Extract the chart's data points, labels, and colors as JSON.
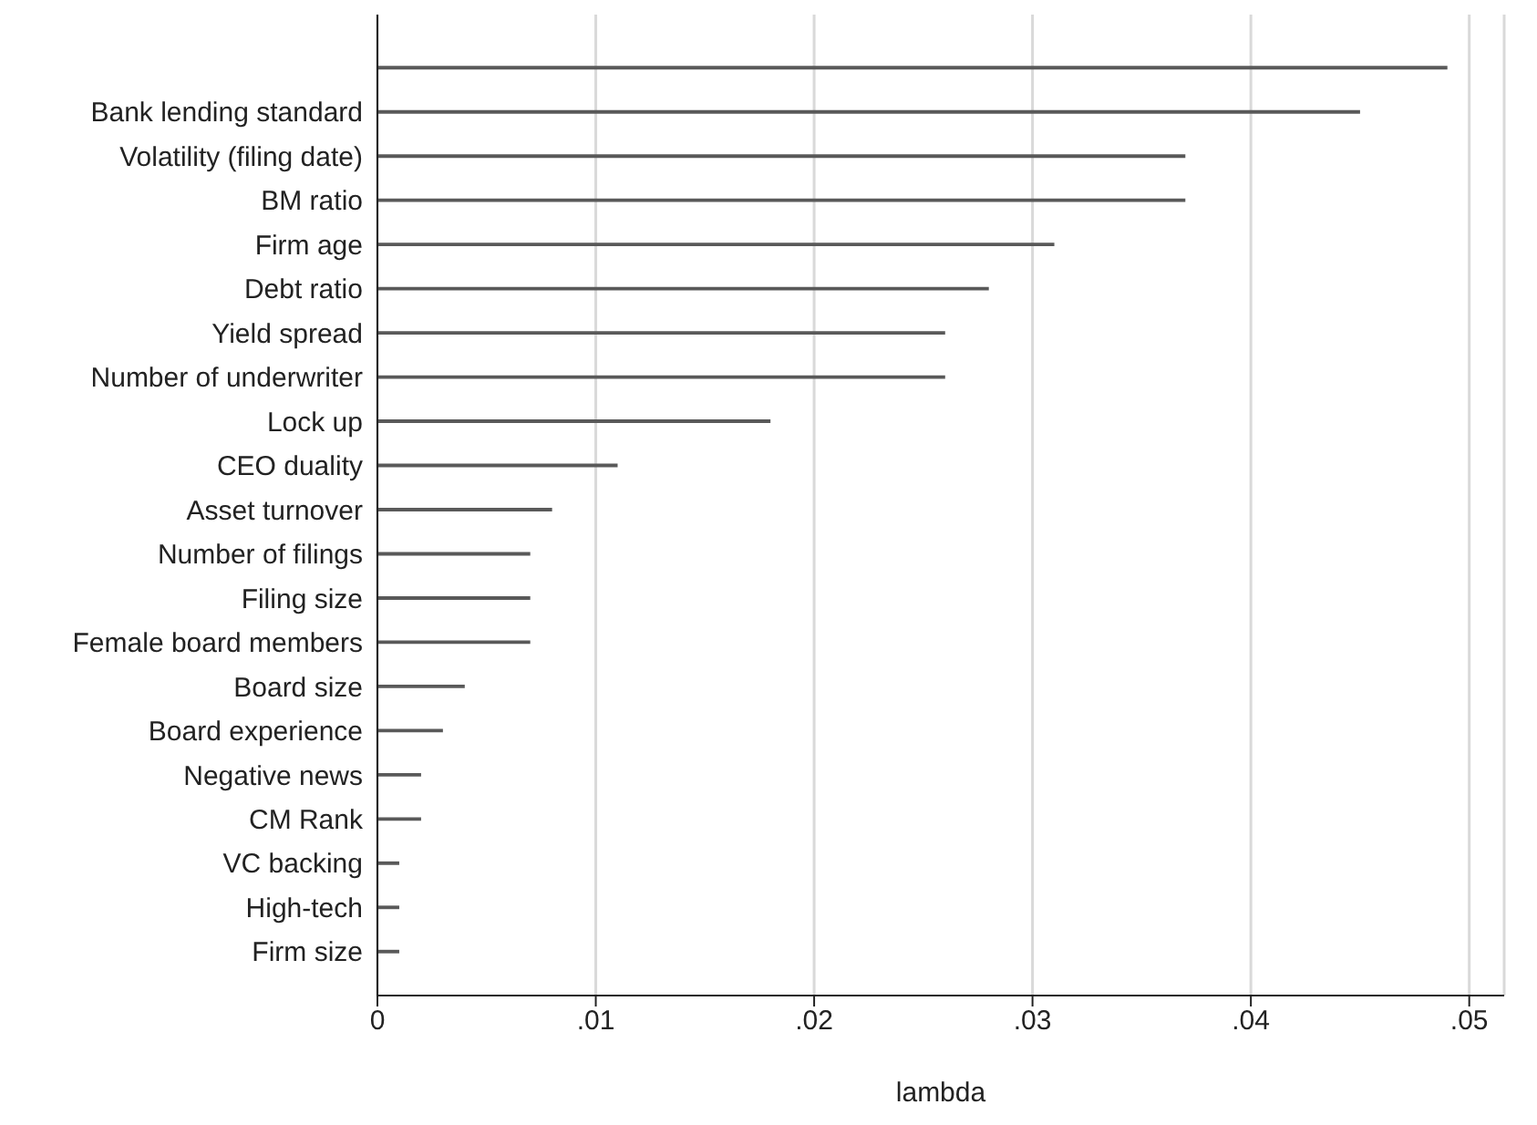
{
  "chart_data": {
    "type": "bar",
    "orientation": "horizontal",
    "xlabel": "lambda",
    "categories": [
      null,
      "Bank lending standard",
      "Volatility (filing date)",
      "BM ratio",
      "Firm age",
      "Debt ratio",
      "Yield spread",
      "Number of underwriter",
      "Lock up",
      "CEO duality",
      "Asset turnover",
      "Number of filings",
      "Filing size",
      "Female board members",
      "Board size",
      "Board experience",
      "Negative news",
      "CM Rank",
      "VC backing",
      "High-tech",
      "Firm size"
    ],
    "values": [
      0.049,
      0.045,
      0.037,
      0.037,
      0.031,
      0.028,
      0.026,
      0.026,
      0.018,
      0.011,
      0.008,
      0.007,
      0.007,
      0.007,
      0.004,
      0.003,
      0.002,
      0.002,
      0.001,
      0.001,
      0.001
    ],
    "color": "#595959",
    "xlim": [
      0,
      0.0516
    ],
    "xticks": [
      {
        "value": 0,
        "label": "0"
      },
      {
        "value": 0.01,
        "label": ".01"
      },
      {
        "value": 0.02,
        "label": ".02"
      },
      {
        "value": 0.03,
        "label": ".03"
      },
      {
        "value": 0.04,
        "label": ".04"
      },
      {
        "value": 0.05,
        "label": ".05"
      }
    ],
    "grid": "x",
    "legend": false
  }
}
